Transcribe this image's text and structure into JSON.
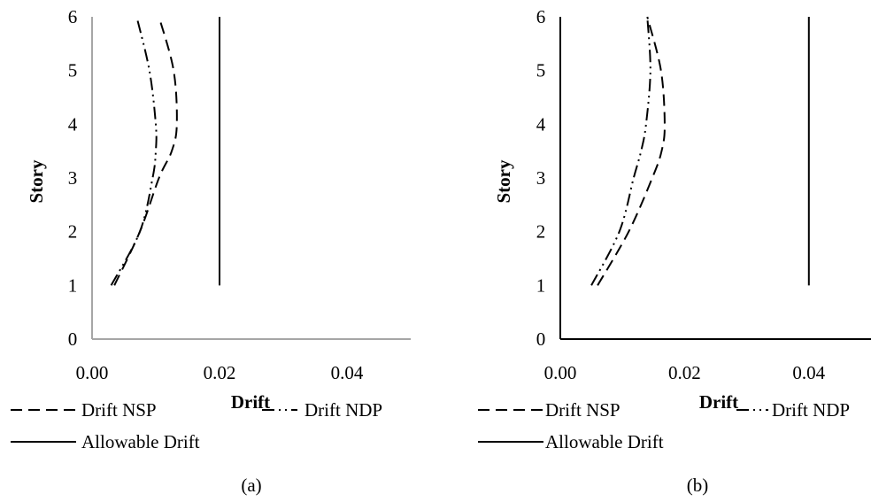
{
  "chart_data": [
    {
      "type": "line",
      "caption": "(a)",
      "xlabel": "Drift",
      "ylabel": "Story",
      "xlim": [
        0,
        0.05
      ],
      "ylim": [
        0,
        6
      ],
      "xticks": [
        "0.00",
        "0.02",
        "0.04"
      ],
      "yticks": [
        "0",
        "1",
        "2",
        "3",
        "4",
        "5",
        "6"
      ],
      "legend_position": "bottom",
      "axis_color": "#a6a6a6",
      "series": [
        {
          "name": "Drift NSP",
          "style": "dashed",
          "color": "#000000",
          "x": [
            0.0035,
            0.0075,
            0.0105,
            0.0125,
            0.0133,
            0.0128,
            0.0105
          ],
          "y": [
            1,
            2,
            3,
            3.5,
            4,
            5,
            6
          ]
        },
        {
          "name": "Drift NDP",
          "style": "dash-dot-dot",
          "color": "#000000",
          "x": [
            0.003,
            0.0075,
            0.0095,
            0.01,
            0.01,
            0.009,
            0.007
          ],
          "y": [
            1,
            2,
            3,
            3.5,
            4,
            5,
            6
          ]
        },
        {
          "name": "Allowable Drift",
          "style": "solid",
          "color": "#000000",
          "x": [
            0.02,
            0.02
          ],
          "y": [
            1,
            6
          ]
        }
      ]
    },
    {
      "type": "line",
      "caption": "(b)",
      "xlabel": "Drift",
      "ylabel": "Story",
      "xlim": [
        0,
        0.05
      ],
      "ylim": [
        0,
        6
      ],
      "xticks": [
        "0.00",
        "0.02",
        "0.04"
      ],
      "yticks": [
        "0",
        "1",
        "2",
        "3",
        "4",
        "5",
        "6"
      ],
      "legend_position": "bottom",
      "axis_color": "#000000",
      "series": [
        {
          "name": "Drift NSP",
          "style": "dashed",
          "color": "#000000",
          "x": [
            0.006,
            0.011,
            0.0148,
            0.0163,
            0.0168,
            0.0162,
            0.014
          ],
          "y": [
            1,
            2,
            3,
            3.5,
            4,
            5,
            6
          ]
        },
        {
          "name": "Drift NDP",
          "style": "dash-dot-dot",
          "color": "#000000",
          "x": [
            0.005,
            0.0095,
            0.0118,
            0.013,
            0.0138,
            0.0145,
            0.014
          ],
          "y": [
            1,
            2,
            3,
            3.5,
            4,
            5,
            6
          ]
        },
        {
          "name": "Allowable Drift",
          "style": "solid",
          "color": "#000000",
          "x": [
            0.04,
            0.04
          ],
          "y": [
            1,
            6
          ]
        }
      ]
    }
  ]
}
